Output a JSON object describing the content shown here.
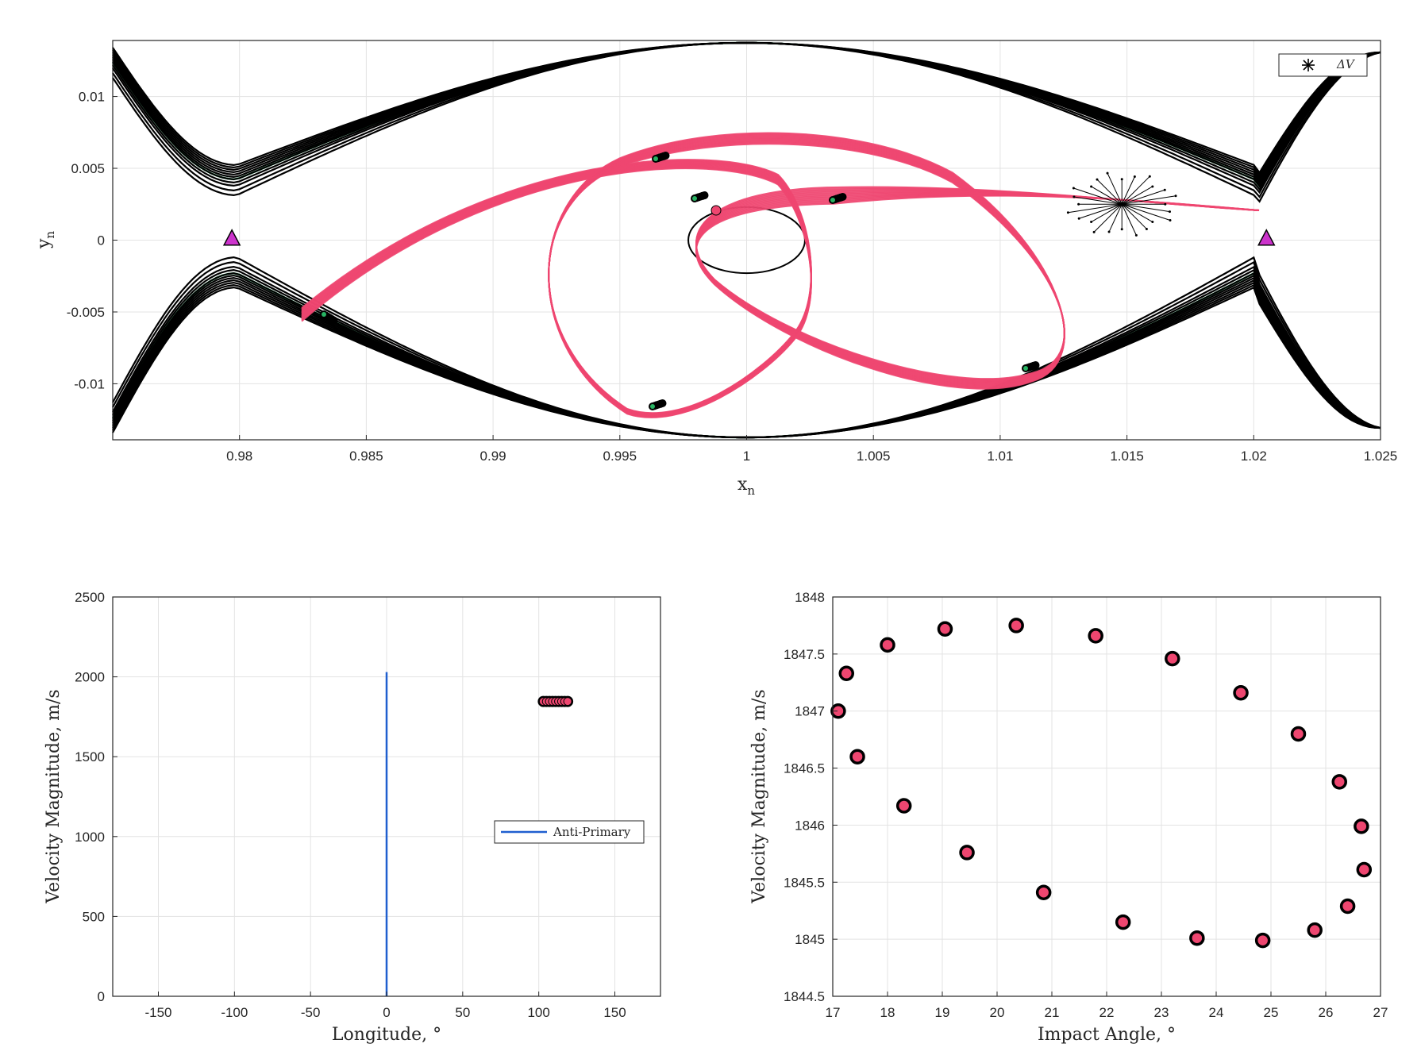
{
  "colors": {
    "traj": "#ee4670",
    "boundary": "#000000",
    "green": "#28b463",
    "lagrange": "#cc33cc",
    "antiPrimary": "#1f5fcf"
  },
  "chart_data": [
    {
      "type": "line",
      "xlabel": "x",
      "xlabel_sub": "n",
      "ylabel": "y",
      "ylabel_sub": "n",
      "xlim": [
        0.975,
        1.025
      ],
      "ylim": [
        -0.0139,
        0.0139
      ],
      "x_ticks": [
        "0.98",
        "0.985",
        "0.99",
        "0.995",
        "1",
        "1.005",
        "1.01",
        "1.015",
        "1.02",
        "1.025"
      ],
      "y_ticks": [
        "0.01",
        "0.005",
        "0",
        "-0.005",
        "-0.01"
      ],
      "grid": true,
      "legend": {
        "position": "top-right",
        "entries": [
          "ΔV"
        ]
      },
      "lagrange_points": [
        [
          0.9797,
          0.0001
        ],
        [
          1.0205,
          0.0001
        ]
      ],
      "delta_v_point": [
        1.0148,
        0.0025
      ],
      "secondary_body": {
        "center": [
          1.0,
          0.0
        ],
        "rx": 0.0023,
        "ry": 0.0023
      }
    },
    {
      "type": "scatter",
      "xlabel": "Longitude, °",
      "ylabel": "Velocity Magnitude, m/s",
      "xlim": [
        -180,
        180
      ],
      "ylim": [
        0,
        2500
      ],
      "x_ticks": [
        "-150",
        "-100",
        "-50",
        "0",
        "50",
        "100",
        "150"
      ],
      "y_ticks": [
        "0",
        "500",
        "1000",
        "1500",
        "2000",
        "2500"
      ],
      "grid": true,
      "legend": {
        "position": "middle-right",
        "entries": [
          "Anti-Primary"
        ]
      },
      "series": [
        {
          "name": "Anti-Primary",
          "type": "vline",
          "x": 0,
          "y": [
            0,
            2030
          ]
        }
      ],
      "impacts": {
        "x": [
          103,
          105,
          107,
          109,
          111,
          113,
          115,
          117,
          119
        ],
        "y": 1846
      }
    },
    {
      "type": "scatter",
      "xlabel": "Impact Angle, °",
      "ylabel": "Velocity Magnitude, m/s",
      "xlim": [
        17,
        27
      ],
      "ylim": [
        1844.5,
        1848
      ],
      "x_ticks": [
        "17",
        "18",
        "19",
        "20",
        "21",
        "22",
        "23",
        "24",
        "25",
        "26",
        "27"
      ],
      "y_ticks": [
        "1844.5",
        "1845",
        "1845.5",
        "1846",
        "1846.5",
        "1847",
        "1847.5",
        "1848"
      ],
      "grid": true,
      "points": [
        [
          17.1,
          1847.0
        ],
        [
          17.25,
          1847.33
        ],
        [
          17.45,
          1846.6
        ],
        [
          18.0,
          1847.58
        ],
        [
          18.3,
          1846.17
        ],
        [
          19.05,
          1847.72
        ],
        [
          19.45,
          1845.76
        ],
        [
          20.35,
          1847.75
        ],
        [
          20.85,
          1845.41
        ],
        [
          21.8,
          1847.66
        ],
        [
          22.3,
          1845.15
        ],
        [
          23.2,
          1847.46
        ],
        [
          23.65,
          1845.01
        ],
        [
          24.45,
          1847.16
        ],
        [
          24.85,
          1844.99
        ],
        [
          25.5,
          1846.8
        ],
        [
          25.8,
          1845.08
        ],
        [
          26.25,
          1846.38
        ],
        [
          26.4,
          1845.29
        ],
        [
          26.65,
          1845.99
        ],
        [
          26.7,
          1845.61
        ]
      ]
    }
  ]
}
